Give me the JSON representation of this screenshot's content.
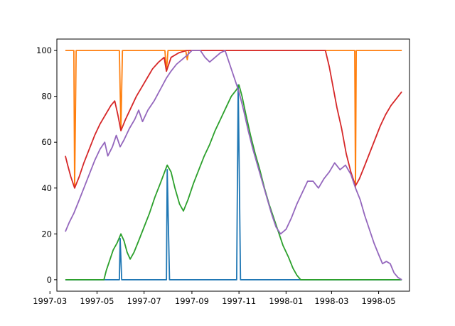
{
  "chart_data": {
    "type": "line",
    "title": "",
    "xlabel": "",
    "ylabel": "",
    "xlim": [
      "1997-03-10",
      "1998-06-10"
    ],
    "ylim": [
      -5,
      105
    ],
    "grid": false,
    "legend": "none",
    "x_ticks": [
      {
        "date": "1997-03-01",
        "label": "1997-03"
      },
      {
        "date": "1997-05-01",
        "label": "1997-05"
      },
      {
        "date": "1997-07-01",
        "label": "1997-07"
      },
      {
        "date": "1997-09-01",
        "label": "1997-09"
      },
      {
        "date": "1997-11-01",
        "label": "1997-11"
      },
      {
        "date": "1998-01-01",
        "label": "1998-01"
      },
      {
        "date": "1998-03-01",
        "label": "1998-03"
      },
      {
        "date": "1998-05-01",
        "label": "1998-05"
      }
    ],
    "y_ticks": [
      {
        "value": 0,
        "label": "0"
      },
      {
        "value": 20,
        "label": "20"
      },
      {
        "value": 40,
        "label": "40"
      },
      {
        "value": 60,
        "label": "60"
      },
      {
        "value": 80,
        "label": "80"
      },
      {
        "value": 100,
        "label": "100"
      }
    ],
    "series": [
      {
        "color": "#1f77b4",
        "points": [
          [
            "1997-03-21",
            0
          ],
          [
            "1997-05-30",
            0
          ],
          [
            "1997-05-31",
            18
          ],
          [
            "1997-06-02",
            0
          ],
          [
            "1997-07-30",
            0
          ],
          [
            "1997-07-31",
            48
          ],
          [
            "1997-08-03",
            0
          ],
          [
            "1997-10-29",
            0
          ],
          [
            "1997-10-31",
            85
          ],
          [
            "1997-11-03",
            0
          ],
          [
            "1998-05-31",
            0
          ]
        ]
      },
      {
        "color": "#ff7f0e",
        "points": [
          [
            "1997-03-21",
            100
          ],
          [
            "1997-04-01",
            100
          ],
          [
            "1997-04-02",
            40
          ],
          [
            "1997-04-04",
            100
          ],
          [
            "1997-05-30",
            100
          ],
          [
            "1997-06-01",
            66
          ],
          [
            "1997-06-03",
            100
          ],
          [
            "1997-07-28",
            100
          ],
          [
            "1997-07-30",
            91
          ],
          [
            "1997-08-01",
            100
          ],
          [
            "1997-08-24",
            100
          ],
          [
            "1997-08-26",
            96
          ],
          [
            "1997-08-28",
            100
          ],
          [
            "1998-03-31",
            100
          ],
          [
            "1998-04-01",
            40
          ],
          [
            "1998-04-02",
            100
          ],
          [
            "1998-05-31",
            100
          ]
        ]
      },
      {
        "color": "#2ca02c",
        "points": [
          [
            "1997-03-21",
            0
          ],
          [
            "1997-05-10",
            0
          ],
          [
            "1997-05-13",
            4
          ],
          [
            "1997-05-17",
            8
          ],
          [
            "1997-05-22",
            13
          ],
          [
            "1997-05-27",
            16
          ],
          [
            "1997-06-01",
            20
          ],
          [
            "1997-06-05",
            17
          ],
          [
            "1997-06-09",
            12
          ],
          [
            "1997-06-13",
            9
          ],
          [
            "1997-06-18",
            12
          ],
          [
            "1997-06-24",
            17
          ],
          [
            "1997-07-01",
            23
          ],
          [
            "1997-07-08",
            29
          ],
          [
            "1997-07-15",
            36
          ],
          [
            "1997-07-22",
            42
          ],
          [
            "1997-07-31",
            50
          ],
          [
            "1997-08-05",
            47
          ],
          [
            "1997-08-10",
            40
          ],
          [
            "1997-08-16",
            33
          ],
          [
            "1997-08-21",
            30
          ],
          [
            "1997-08-27",
            35
          ],
          [
            "1997-09-03",
            42
          ],
          [
            "1997-09-10",
            48
          ],
          [
            "1997-09-17",
            54
          ],
          [
            "1997-09-24",
            59
          ],
          [
            "1997-10-01",
            65
          ],
          [
            "1997-10-08",
            70
          ],
          [
            "1997-10-15",
            75
          ],
          [
            "1997-10-22",
            80
          ],
          [
            "1997-10-29",
            83
          ],
          [
            "1997-11-01",
            85
          ],
          [
            "1997-11-05",
            80
          ],
          [
            "1997-11-10",
            72
          ],
          [
            "1997-11-16",
            63
          ],
          [
            "1997-11-22",
            55
          ],
          [
            "1997-11-28",
            48
          ],
          [
            "1997-12-04",
            40
          ],
          [
            "1997-12-10",
            33
          ],
          [
            "1997-12-16",
            27
          ],
          [
            "1997-12-22",
            21
          ],
          [
            "1997-12-28",
            15
          ],
          [
            "1998-01-04",
            10
          ],
          [
            "1998-01-10",
            5
          ],
          [
            "1998-01-15",
            2
          ],
          [
            "1998-01-20",
            0
          ],
          [
            "1998-05-31",
            0
          ]
        ]
      },
      {
        "color": "#d62728",
        "points": [
          [
            "1997-03-21",
            54
          ],
          [
            "1997-03-24",
            50
          ],
          [
            "1997-03-28",
            45
          ],
          [
            "1997-04-02",
            40
          ],
          [
            "1997-04-08",
            45
          ],
          [
            "1997-04-14",
            51
          ],
          [
            "1997-04-21",
            57
          ],
          [
            "1997-04-28",
            63
          ],
          [
            "1997-05-05",
            68
          ],
          [
            "1997-05-12",
            72
          ],
          [
            "1997-05-19",
            76
          ],
          [
            "1997-05-24",
            78
          ],
          [
            "1997-05-28",
            72
          ],
          [
            "1997-06-01",
            65
          ],
          [
            "1997-06-07",
            70
          ],
          [
            "1997-06-14",
            75
          ],
          [
            "1997-06-21",
            80
          ],
          [
            "1997-06-28",
            84
          ],
          [
            "1997-07-05",
            88
          ],
          [
            "1997-07-12",
            92
          ],
          [
            "1997-07-20",
            95
          ],
          [
            "1997-07-27",
            97
          ],
          [
            "1997-07-30",
            91
          ],
          [
            "1997-08-05",
            97
          ],
          [
            "1997-08-15",
            99
          ],
          [
            "1997-08-25",
            100
          ],
          [
            "1998-02-21",
            100
          ],
          [
            "1998-02-26",
            93
          ],
          [
            "1998-03-03",
            84
          ],
          [
            "1998-03-08",
            75
          ],
          [
            "1998-03-14",
            66
          ],
          [
            "1998-03-20",
            55
          ],
          [
            "1998-03-26",
            47
          ],
          [
            "1998-04-01",
            41
          ],
          [
            "1998-04-06",
            44
          ],
          [
            "1998-04-12",
            49
          ],
          [
            "1998-04-19",
            55
          ],
          [
            "1998-04-26",
            61
          ],
          [
            "1998-05-03",
            67
          ],
          [
            "1998-05-10",
            72
          ],
          [
            "1998-05-17",
            76
          ],
          [
            "1998-05-24",
            79
          ],
          [
            "1998-05-31",
            82
          ]
        ]
      },
      {
        "color": "#9467bd",
        "points": [
          [
            "1997-03-21",
            21
          ],
          [
            "1997-03-26",
            25
          ],
          [
            "1997-04-01",
            29
          ],
          [
            "1997-04-07",
            34
          ],
          [
            "1997-04-14",
            40
          ],
          [
            "1997-04-21",
            46
          ],
          [
            "1997-04-28",
            52
          ],
          [
            "1997-05-05",
            57
          ],
          [
            "1997-05-11",
            60
          ],
          [
            "1997-05-15",
            54
          ],
          [
            "1997-05-21",
            58
          ],
          [
            "1997-05-26",
            63
          ],
          [
            "1997-05-31",
            58
          ],
          [
            "1997-06-05",
            61
          ],
          [
            "1997-06-12",
            66
          ],
          [
            "1997-06-19",
            70
          ],
          [
            "1997-06-24",
            74
          ],
          [
            "1997-06-29",
            69
          ],
          [
            "1997-07-06",
            74
          ],
          [
            "1997-07-14",
            78
          ],
          [
            "1997-07-22",
            83
          ],
          [
            "1997-07-30",
            88
          ],
          [
            "1997-08-05",
            91
          ],
          [
            "1997-08-12",
            94
          ],
          [
            "1997-08-19",
            96
          ],
          [
            "1997-08-26",
            98
          ],
          [
            "1997-09-01",
            100
          ],
          [
            "1997-09-12",
            100
          ],
          [
            "1997-09-18",
            97
          ],
          [
            "1997-09-24",
            95
          ],
          [
            "1997-10-01",
            97
          ],
          [
            "1997-10-08",
            99
          ],
          [
            "1997-10-14",
            100
          ],
          [
            "1997-10-20",
            94
          ],
          [
            "1997-10-26",
            88
          ],
          [
            "1997-11-01",
            82
          ],
          [
            "1997-11-07",
            74
          ],
          [
            "1997-11-13",
            65
          ],
          [
            "1997-11-19",
            57
          ],
          [
            "1997-11-25",
            50
          ],
          [
            "1997-12-01",
            43
          ],
          [
            "1997-12-07",
            36
          ],
          [
            "1997-12-13",
            29
          ],
          [
            "1997-12-19",
            23
          ],
          [
            "1997-12-25",
            20
          ],
          [
            "1998-01-01",
            22
          ],
          [
            "1998-01-08",
            27
          ],
          [
            "1998-01-15",
            33
          ],
          [
            "1998-01-22",
            38
          ],
          [
            "1998-01-29",
            43
          ],
          [
            "1998-02-05",
            43
          ],
          [
            "1998-02-12",
            40
          ],
          [
            "1998-02-19",
            44
          ],
          [
            "1998-02-26",
            47
          ],
          [
            "1998-03-05",
            51
          ],
          [
            "1998-03-12",
            48
          ],
          [
            "1998-03-19",
            50
          ],
          [
            "1998-03-26",
            46
          ],
          [
            "1998-04-01",
            40
          ],
          [
            "1998-04-07",
            35
          ],
          [
            "1998-04-13",
            28
          ],
          [
            "1998-04-19",
            22
          ],
          [
            "1998-04-25",
            16
          ],
          [
            "1998-05-01",
            11
          ],
          [
            "1998-05-06",
            7
          ],
          [
            "1998-05-11",
            8
          ],
          [
            "1998-05-16",
            7
          ],
          [
            "1998-05-21",
            3
          ],
          [
            "1998-05-26",
            1
          ],
          [
            "1998-05-31",
            0
          ]
        ]
      }
    ]
  }
}
